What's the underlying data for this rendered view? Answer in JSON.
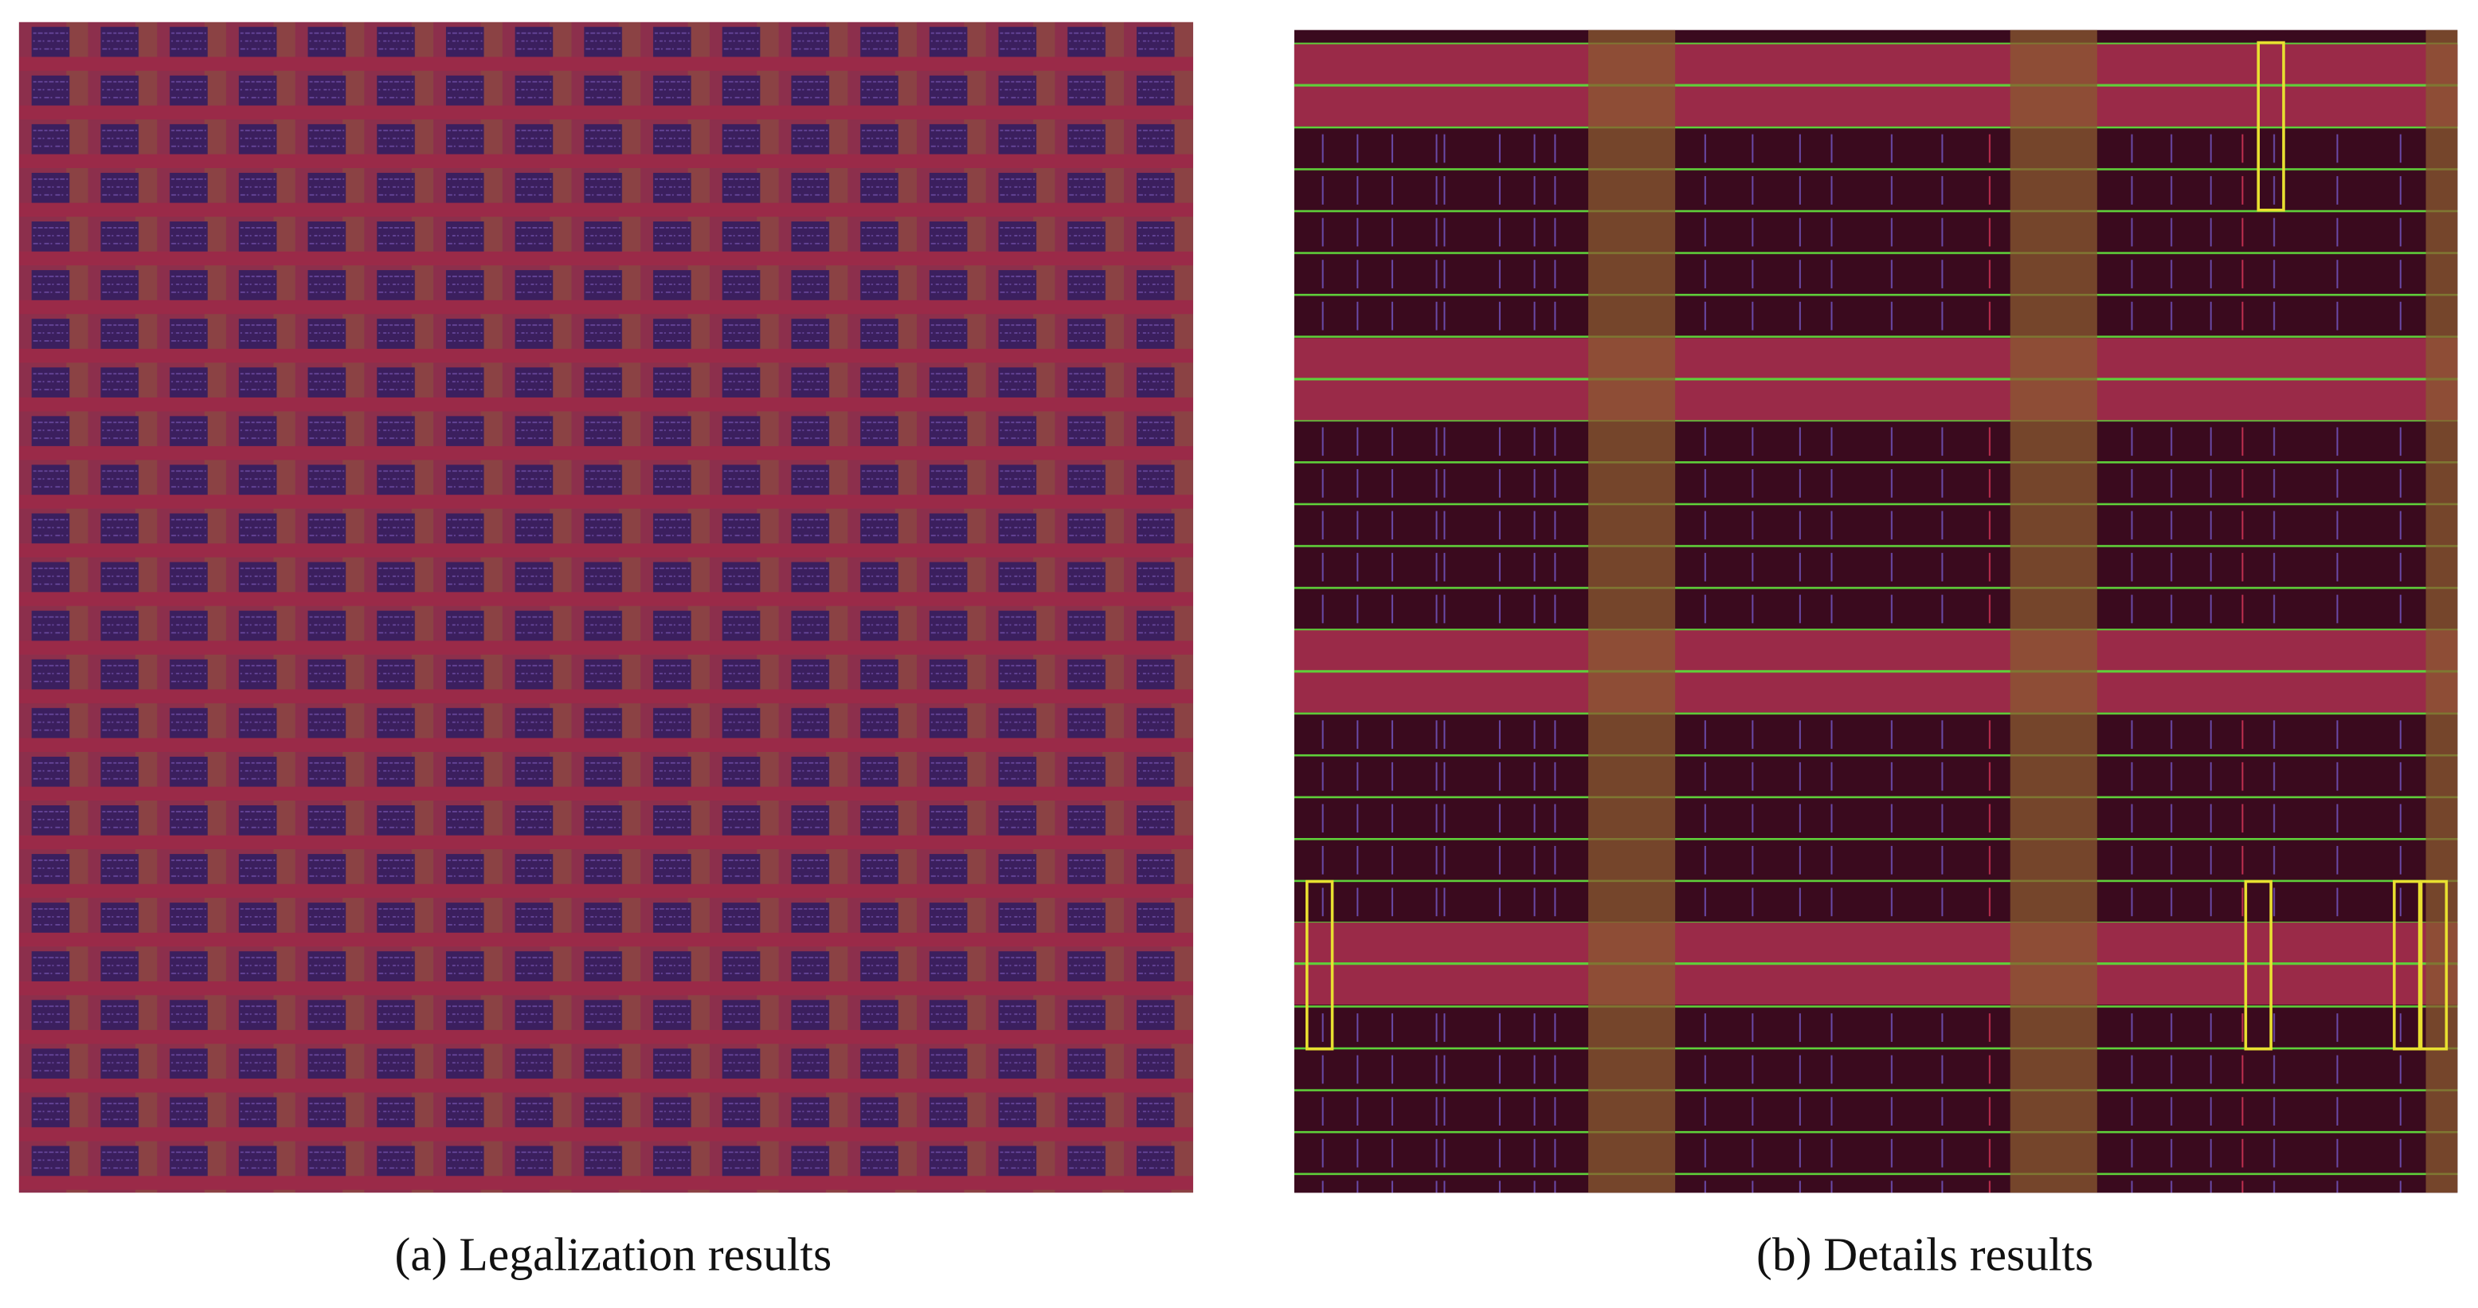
{
  "figure": {
    "subfigures": [
      {
        "caption": "(a) Legalization results"
      },
      {
        "caption": "(b) Details results"
      }
    ]
  }
}
